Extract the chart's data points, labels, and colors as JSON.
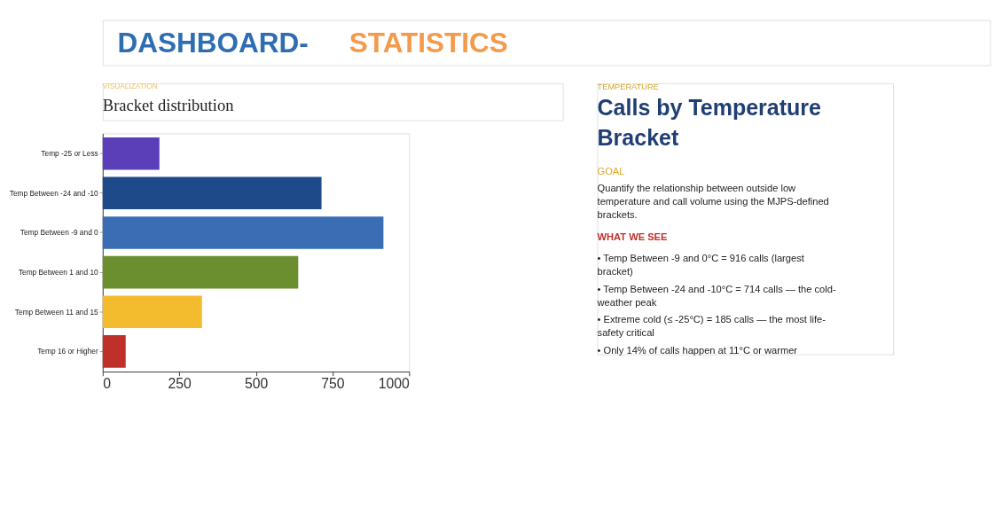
{
  "chart_data": [
    {
      "type": "bar",
      "orientation": "horizontal",
      "title": "Bracket distribution",
      "subtitle": "VISUALIZATION",
      "annotations": [
        "DASHBOARD-",
        "STATISTICS"
      ],
      "categories": [
        "Temp -25 or Less",
        "Temp Between -24 and -10",
        "Temp Between -9 and 0",
        "Temp Between 1 and 10",
        "Temp Between 11 and 15",
        "Temp 16 or Higher"
      ],
      "values": [
        185,
        714,
        916,
        638,
        324,
        75
      ],
      "colors": [
        "#5a3fb8",
        "#1f4a8a",
        "#3a6db3",
        "#6b8e2f",
        "#f2bc2e",
        "#c0302a"
      ],
      "xlim": [
        0,
        1000
      ],
      "xticks": [
        0,
        250,
        500,
        750,
        1000
      ],
      "grid": false,
      "legend": false
    },
    {
      "type": "other",
      "title": "Calls by Temperature Bracket",
      "subtitle": "TEMPERATURE",
      "annotations": [
        "GOAL",
        "Quantify the relationship between outside low temperature and call volume using the MJPS-defined brackets.",
        "WHAT WE SEE",
        "• Temp Between -9 and 0°C = 916 calls (largest bracket)",
        "• Temp Between -24 and -10°C = 714 calls — the cold-weather peak",
        "• Extreme cold (≤ -25°C) = 185 calls — the most life-safety critical",
        "• Only 14% of calls happen at 11°C or warmer"
      ]
    }
  ]
}
